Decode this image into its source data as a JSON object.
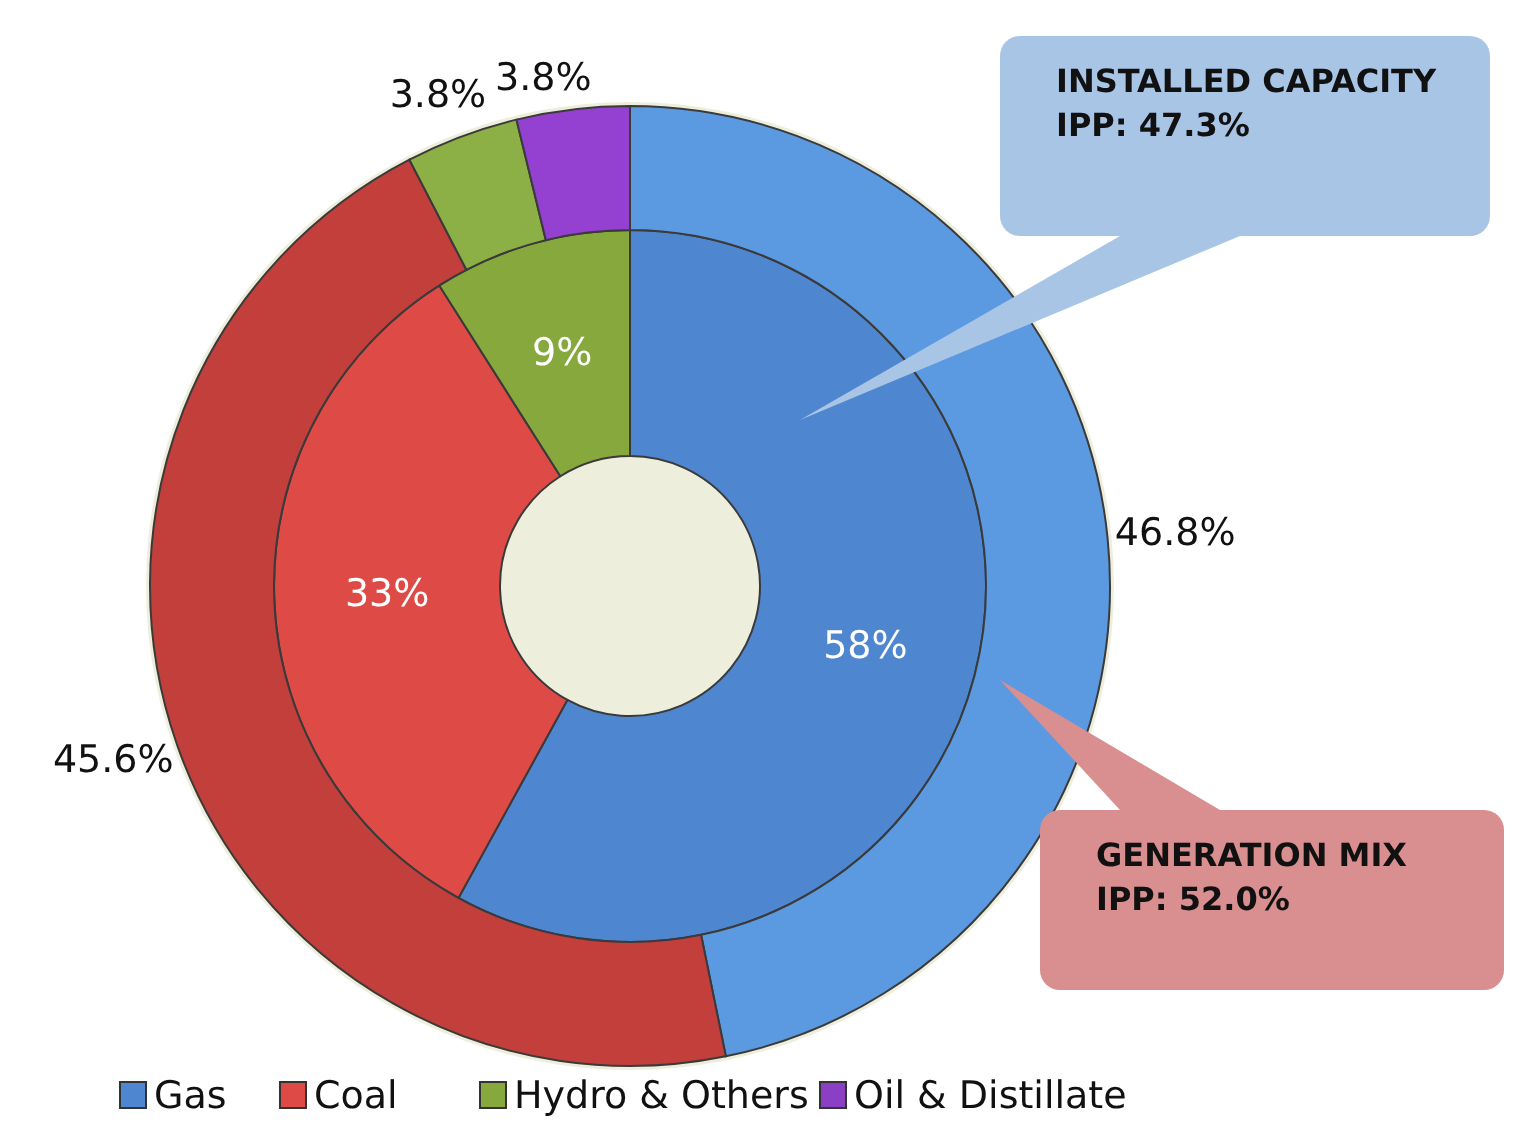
{
  "chart_data": {
    "type": "donut",
    "categories": [
      "Gas",
      "Coal",
      "Hydro & Others",
      "Oil & Distillate"
    ],
    "series": [
      {
        "colors": [
          "#4f86d0",
          "#de4a45",
          "#86a83c",
          "#8b3fc4"
        ],
        "values": [
          58,
          33,
          9,
          null
        ],
        "value_labels": [
          "58%",
          "33%",
          "9%",
          null
        ]
      },
      {
        "colors": [
          "#5b9ae0",
          "#c23f3b",
          "#8cb046",
          "#9440d0"
        ],
        "values": [
          46.8,
          45.6,
          3.8,
          3.8
        ],
        "value_labels": [
          "46.8%",
          "45.6%",
          "3.8%",
          "3.8%"
        ]
      }
    ],
    "annotations": [
      "INSTALLED CAPACITY\nIPP: 47.3%",
      "GENERATION MIX\nIPP: 52.0%"
    ],
    "legend": "bottom"
  }
}
